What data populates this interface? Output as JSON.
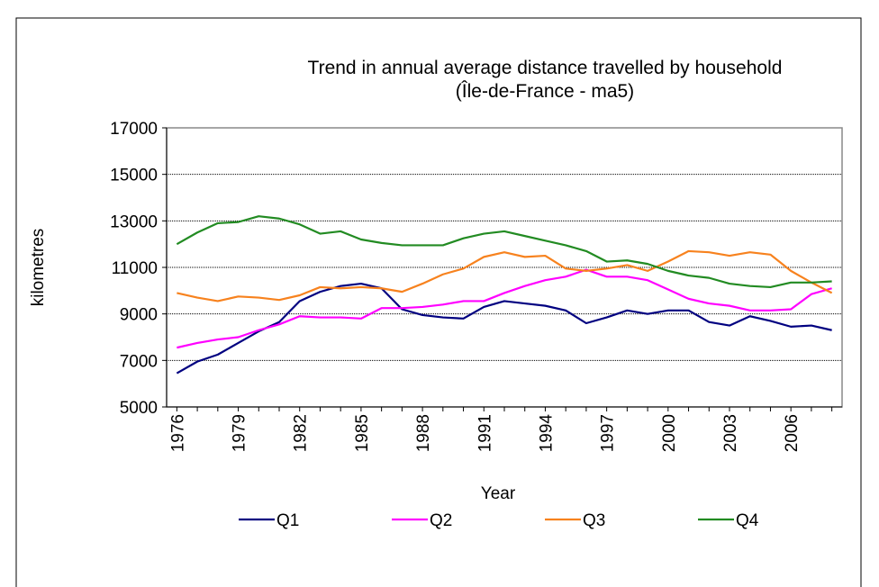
{
  "chart_data": {
    "type": "line",
    "title": [
      "Trend in annual average distance travelled by household",
      "(Île-de-France - ma5)"
    ],
    "xlabel": "Year",
    "ylabel": "kilometres",
    "categories": [
      "1976",
      null,
      null,
      "1979",
      null,
      null,
      "1982",
      null,
      null,
      "1985",
      null,
      null,
      "1988",
      null,
      null,
      "1991",
      null,
      null,
      "1994",
      null,
      null,
      "1997",
      null,
      null,
      "2000",
      null,
      null,
      "2003",
      null,
      null,
      "2006",
      null,
      null
    ],
    "ylim": [
      5000,
      17000
    ],
    "yticks": [
      5000,
      7000,
      9000,
      11000,
      13000,
      15000,
      17000
    ],
    "grid": true,
    "legend": "bottom",
    "series": [
      {
        "name": "Q1",
        "color": "#000080",
        "values": [
          6450,
          6950,
          7250,
          7750,
          8250,
          8650,
          9550,
          9950,
          10200,
          10300,
          10100,
          9200,
          8950,
          8850,
          8800,
          9300,
          9550,
          9450,
          9350,
          9150,
          8600,
          8850,
          9150,
          9000,
          9150,
          9150,
          8650,
          8500,
          8900,
          8700,
          8450,
          8500,
          8300
        ]
      },
      {
        "name": "Q2",
        "color": "#ff00ff",
        "values": [
          7550,
          7750,
          7900,
          8000,
          8300,
          8550,
          8900,
          8850,
          8850,
          8800,
          9250,
          9250,
          9300,
          9400,
          9550,
          9550,
          9900,
          10200,
          10450,
          10600,
          10900,
          10600,
          10600,
          10450,
          10050,
          9650,
          9450,
          9350,
          9150,
          9150,
          9200,
          9850,
          10100
        ]
      },
      {
        "name": "Q3",
        "color": "#f7821e",
        "values": [
          9900,
          9700,
          9550,
          9750,
          9700,
          9600,
          9800,
          10150,
          10100,
          10150,
          10100,
          9950,
          10300,
          10700,
          10950,
          11450,
          11650,
          11450,
          11500,
          10950,
          10850,
          10950,
          11100,
          10850,
          11250,
          11700,
          11650,
          11500,
          11650,
          11550,
          10850,
          10350,
          9900
        ]
      },
      {
        "name": "Q4",
        "color": "#228b22",
        "values": [
          12000,
          12500,
          12900,
          12950,
          13200,
          13100,
          12850,
          12450,
          12550,
          12200,
          12050,
          11950,
          11950,
          11950,
          12250,
          12450,
          12550,
          12350,
          12150,
          11950,
          11700,
          11250,
          11300,
          11150,
          10850,
          10650,
          10550,
          10300,
          10200,
          10150,
          10350,
          10350,
          10400
        ]
      }
    ]
  }
}
